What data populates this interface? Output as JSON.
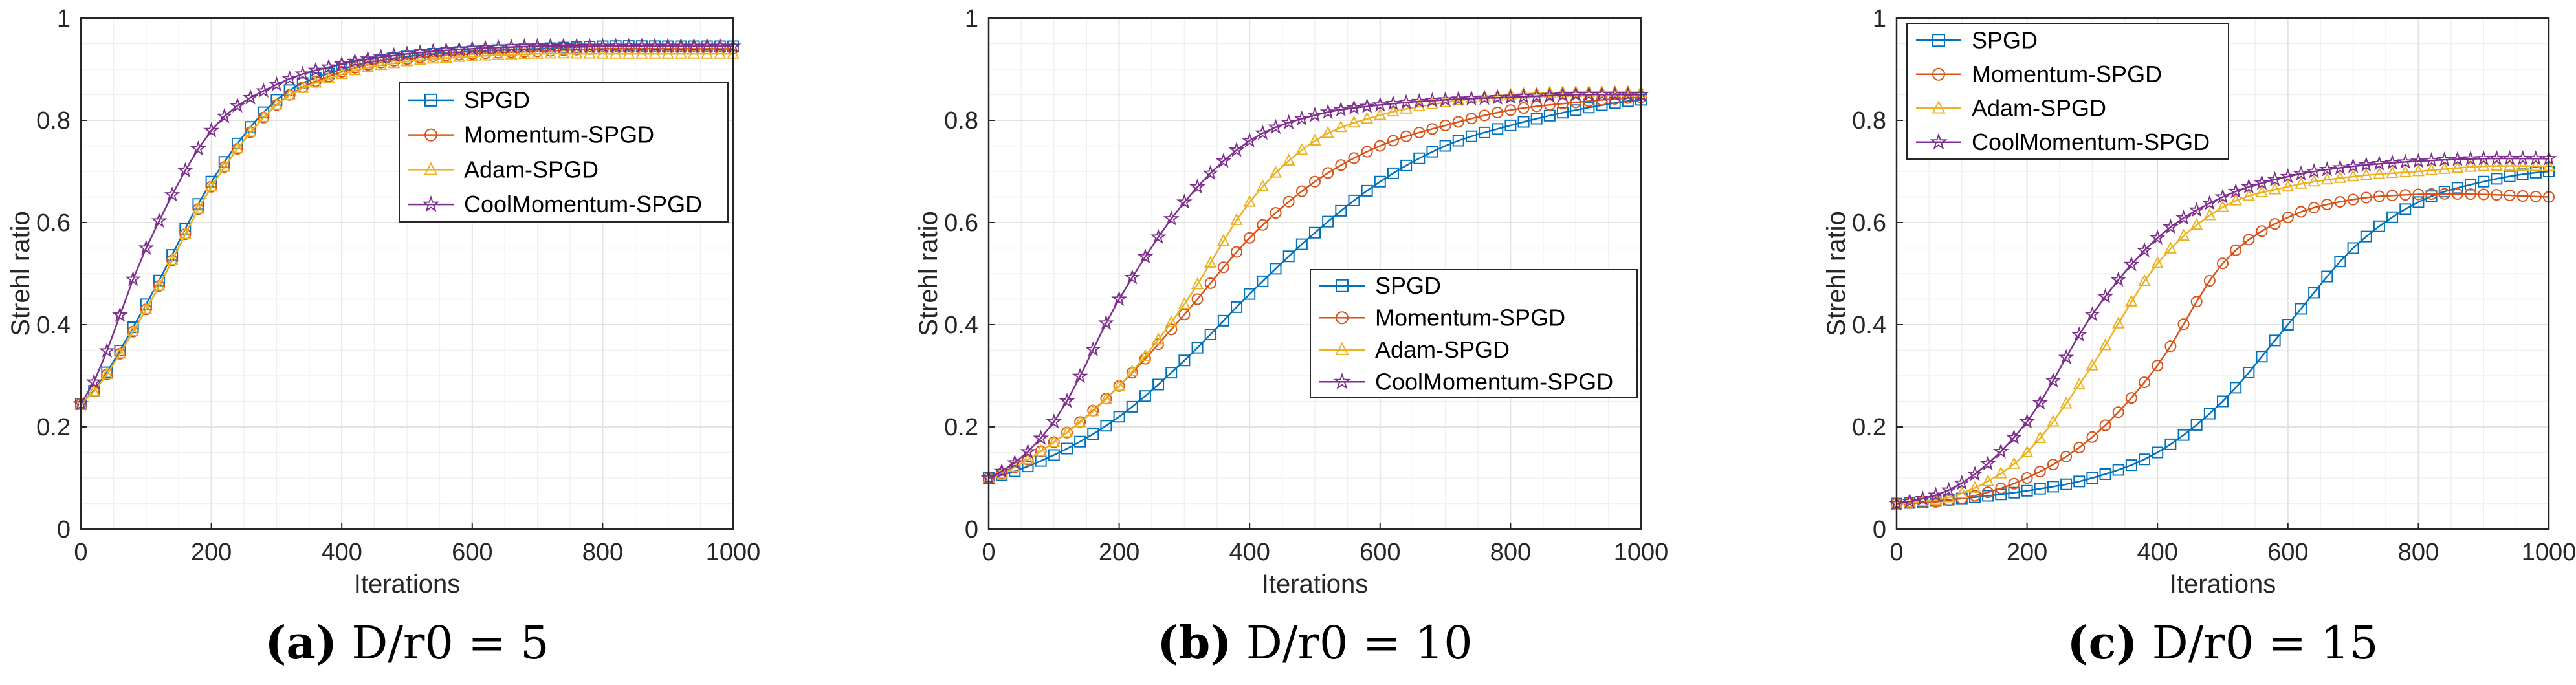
{
  "colors": {
    "SPGD": "#0072BD",
    "Momentum-SPGD": "#D95319",
    "Adam-SPGD": "#EDB120",
    "CoolMomentum-SPGD": "#7E2F8E",
    "grid": "#e3e3e3",
    "axis": "#262626"
  },
  "chart_data": [
    {
      "type": "line",
      "caption_letter": "(a)",
      "caption_text": "D/r0 = 5",
      "xlabel": "Iterations",
      "ylabel": "Strehl ratio",
      "xlim": [
        0,
        1000
      ],
      "ylim": [
        0,
        1
      ],
      "xticks": [
        0,
        200,
        400,
        600,
        800,
        1000
      ],
      "yticks": [
        0,
        0.2,
        0.4,
        0.6,
        0.8,
        1
      ],
      "ytick_labels": [
        "0",
        "0.2",
        "0.4",
        "0.6",
        "0.8",
        "1"
      ],
      "grid": "on",
      "legend_position": "center-right",
      "x": [
        0,
        100,
        200,
        300,
        400,
        500,
        600,
        700,
        800,
        900,
        1000
      ],
      "series": [
        {
          "name": "SPGD",
          "marker": "square",
          "values": [
            0.245,
            0.44,
            0.68,
            0.84,
            0.9,
            0.925,
            0.935,
            0.94,
            0.945,
            0.945,
            0.945
          ]
        },
        {
          "name": "Momentum-SPGD",
          "marker": "circle",
          "values": [
            0.245,
            0.43,
            0.67,
            0.83,
            0.895,
            0.92,
            0.93,
            0.935,
            0.94,
            0.94,
            0.94
          ]
        },
        {
          "name": "Adam-SPGD",
          "marker": "triangle",
          "values": [
            0.245,
            0.43,
            0.67,
            0.83,
            0.89,
            0.915,
            0.925,
            0.93,
            0.93,
            0.93,
            0.93
          ]
        },
        {
          "name": "CoolMomentum-SPGD",
          "marker": "star",
          "values": [
            0.245,
            0.55,
            0.78,
            0.87,
            0.91,
            0.93,
            0.94,
            0.945,
            0.945,
            0.945,
            0.945
          ]
        }
      ]
    },
    {
      "type": "line",
      "caption_letter": "(b)",
      "caption_text": "D/r0 = 10",
      "xlabel": "Iterations",
      "ylabel": "Strehl ratio",
      "xlim": [
        0,
        1000
      ],
      "ylim": [
        0,
        1
      ],
      "xticks": [
        0,
        200,
        400,
        600,
        800,
        1000
      ],
      "yticks": [
        0,
        0.2,
        0.4,
        0.6,
        0.8,
        1
      ],
      "ytick_labels": [
        "0",
        "0.2",
        "0.4",
        "0.6",
        "0.8",
        "1"
      ],
      "grid": "on",
      "legend_position": "center-right",
      "x": [
        0,
        100,
        200,
        300,
        400,
        500,
        600,
        700,
        800,
        900,
        1000
      ],
      "series": [
        {
          "name": "SPGD",
          "marker": "square",
          "values": [
            0.1,
            0.145,
            0.22,
            0.33,
            0.46,
            0.58,
            0.68,
            0.75,
            0.79,
            0.82,
            0.84
          ]
        },
        {
          "name": "Momentum-SPGD",
          "marker": "circle",
          "values": [
            0.1,
            0.17,
            0.28,
            0.42,
            0.57,
            0.68,
            0.75,
            0.79,
            0.82,
            0.835,
            0.845
          ]
        },
        {
          "name": "Adam-SPGD",
          "marker": "triangle",
          "values": [
            0.1,
            0.17,
            0.28,
            0.44,
            0.64,
            0.76,
            0.81,
            0.835,
            0.85,
            0.855,
            0.855
          ]
        },
        {
          "name": "CoolMomentum-SPGD",
          "marker": "star",
          "values": [
            0.1,
            0.21,
            0.45,
            0.64,
            0.76,
            0.81,
            0.83,
            0.84,
            0.845,
            0.85,
            0.85
          ]
        }
      ]
    },
    {
      "type": "line",
      "caption_letter": "(c)",
      "caption_text": "D/r0 = 15",
      "xlabel": "Iterations",
      "ylabel": "Strehl ratio",
      "xlim": [
        0,
        1000
      ],
      "ylim": [
        0,
        1
      ],
      "xticks": [
        0,
        200,
        400,
        600,
        800,
        1000
      ],
      "yticks": [
        0,
        0.2,
        0.4,
        0.6,
        0.8,
        1
      ],
      "ytick_labels": [
        "0",
        "0.2",
        "0.4",
        "0.6",
        "0.8",
        "1"
      ],
      "grid": "on",
      "legend_position": "top-left",
      "x": [
        0,
        100,
        200,
        300,
        400,
        500,
        600,
        700,
        800,
        900,
        1000
      ],
      "series": [
        {
          "name": "SPGD",
          "marker": "square",
          "values": [
            0.05,
            0.06,
            0.075,
            0.1,
            0.15,
            0.25,
            0.4,
            0.55,
            0.64,
            0.68,
            0.7
          ]
        },
        {
          "name": "Momentum-SPGD",
          "marker": "circle",
          "values": [
            0.05,
            0.06,
            0.1,
            0.18,
            0.32,
            0.52,
            0.61,
            0.645,
            0.655,
            0.655,
            0.65
          ]
        },
        {
          "name": "Adam-SPGD",
          "marker": "triangle",
          "values": [
            0.05,
            0.07,
            0.15,
            0.32,
            0.52,
            0.63,
            0.67,
            0.69,
            0.7,
            0.71,
            0.71
          ]
        },
        {
          "name": "CoolMomentum-SPGD",
          "marker": "star",
          "values": [
            0.05,
            0.09,
            0.21,
            0.42,
            0.57,
            0.65,
            0.69,
            0.71,
            0.72,
            0.725,
            0.725
          ]
        }
      ]
    }
  ]
}
